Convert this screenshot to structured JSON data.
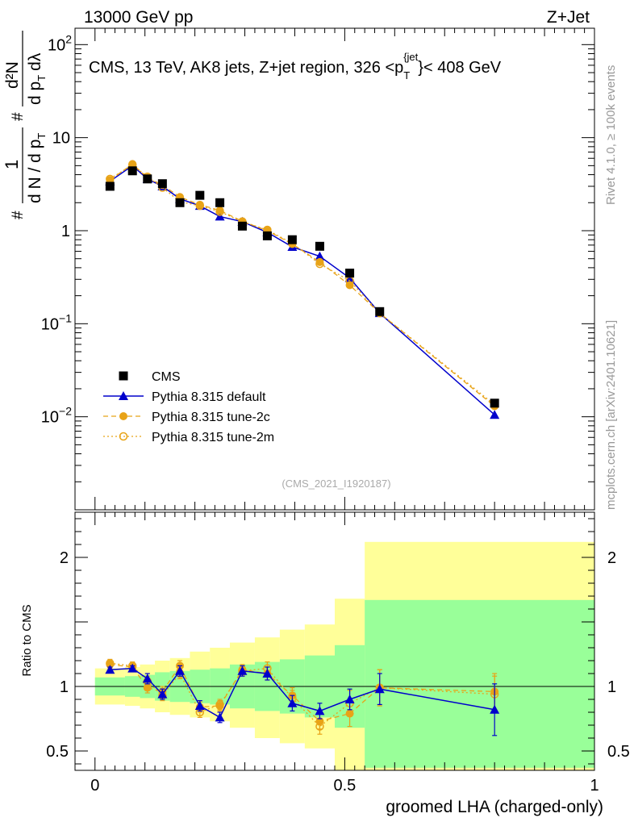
{
  "header": {
    "left": "13000 GeV pp",
    "right": "Z+Jet"
  },
  "side_labels": {
    "rivet": "Rivet 4.1.0, ≥ 100k events",
    "mcplots": "mcplots.cern.ch [arXiv:2401.10621]"
  },
  "colors": {
    "cms": "#000000",
    "default": "#0000cc",
    "tune2c": "#e8a317",
    "tune2m": "#e8a317",
    "band_inner": "#99ff99",
    "band_outer": "#ffff99"
  },
  "chart_data": [
    {
      "type": "line",
      "panel": "distribution",
      "title": "CMS, 13 TeV, AK8 jets, Z+jet region, 326 <p_T^{jet}< 408 GeV",
      "title_parts": {
        "main": "CMS, 13 TeV, AK8 jets, Z+jet region, 326 <p",
        "sub": "T",
        "sup": "{jet",
        "tail": "}< 408 GeV"
      },
      "watermark": "(CMS_2021_I1920187)",
      "ylabel_parts": {
        "hash1": "#",
        "hash2": "#",
        "one": "1",
        "dN": "d N / d p",
        "dN_sub": "T",
        "d2N": "d²N",
        "dpTdl": "d p",
        "dpTdl_sub": "T",
        "dl": "dλ"
      },
      "yscale": "log",
      "ylim": [
        0.001,
        150
      ],
      "xlim": [
        -0.04,
        1.0
      ],
      "yticks": [
        {
          "value": 0.01,
          "label": "10",
          "exp": "−2"
        },
        {
          "value": 0.1,
          "label": "10",
          "exp": "−1"
        },
        {
          "value": 1,
          "label": "1",
          "exp": ""
        },
        {
          "value": 10,
          "label": "10",
          "exp": ""
        },
        {
          "value": 100,
          "label": "10",
          "exp": "2"
        }
      ],
      "x": [
        0.03,
        0.075,
        0.105,
        0.135,
        0.17,
        0.21,
        0.25,
        0.295,
        0.345,
        0.395,
        0.45,
        0.51,
        0.57,
        0.8
      ],
      "series": [
        {
          "name": "CMS",
          "style": "square",
          "values": [
            3.0,
            4.4,
            3.6,
            3.2,
            2.0,
            2.4,
            2.0,
            1.12,
            0.88,
            0.8,
            0.68,
            0.35,
            0.135,
            0.014
          ]
        },
        {
          "name": "Pythia 8.315 default",
          "style": "triangle-line",
          "values": [
            3.4,
            5.0,
            3.6,
            3.0,
            2.2,
            1.85,
            1.42,
            1.25,
            0.96,
            0.67,
            0.53,
            0.31,
            0.13,
            0.0105
          ]
        },
        {
          "name": "Pythia 8.315 tune-2c",
          "style": "dot-dashed",
          "values": [
            3.5,
            5.2,
            3.7,
            3.1,
            2.3,
            1.9,
            1.65,
            1.26,
            1.0,
            0.72,
            0.46,
            0.26,
            0.13,
            0.013
          ]
        },
        {
          "name": "Pythia 8.315 tune-2m",
          "style": "circle-dotted",
          "values": [
            3.6,
            5.1,
            3.8,
            2.9,
            2.05,
            1.85,
            1.6,
            1.25,
            1.02,
            0.73,
            0.44,
            0.29,
            0.13,
            0.0135
          ]
        }
      ],
      "legend": [
        "CMS",
        "Pythia 8.315 default",
        "Pythia 8.315 tune-2c",
        "Pythia 8.315 tune-2m"
      ],
      "legend_position": "middle-left"
    },
    {
      "type": "line",
      "panel": "ratio",
      "ylabel": "Ratio to CMS",
      "xlabel": "groomed LHA (charged-only)",
      "ylim": [
        0.35,
        2.35
      ],
      "xlim": [
        -0.04,
        1.0
      ],
      "xticks": [
        {
          "value": 0,
          "label": "0"
        },
        {
          "value": 0.5,
          "label": "0.5"
        },
        {
          "value": 1,
          "label": "1"
        }
      ],
      "yticks": [
        {
          "value": 0.5,
          "label": "0.5"
        },
        {
          "value": 1,
          "label": "1"
        },
        {
          "value": 2,
          "label": "2"
        }
      ],
      "bins": [
        {
          "x0": 0.0,
          "x1": 0.06,
          "inner": [
            0.93,
            1.07
          ],
          "outer": [
            0.86,
            1.14
          ]
        },
        {
          "x0": 0.06,
          "x1": 0.09,
          "inner": [
            0.92,
            1.08
          ],
          "outer": [
            0.85,
            1.15
          ]
        },
        {
          "x0": 0.09,
          "x1": 0.12,
          "inner": [
            0.91,
            1.09
          ],
          "outer": [
            0.83,
            1.17
          ]
        },
        {
          "x0": 0.12,
          "x1": 0.15,
          "inner": [
            0.89,
            1.11
          ],
          "outer": [
            0.8,
            1.2
          ]
        },
        {
          "x0": 0.15,
          "x1": 0.19,
          "inner": [
            0.88,
            1.12
          ],
          "outer": [
            0.78,
            1.22
          ]
        },
        {
          "x0": 0.19,
          "x1": 0.23,
          "inner": [
            0.87,
            1.13
          ],
          "outer": [
            0.76,
            1.27
          ]
        },
        {
          "x0": 0.23,
          "x1": 0.27,
          "inner": [
            0.86,
            1.14
          ],
          "outer": [
            0.73,
            1.3
          ]
        },
        {
          "x0": 0.27,
          "x1": 0.32,
          "inner": [
            0.83,
            1.17
          ],
          "outer": [
            0.68,
            1.34
          ]
        },
        {
          "x0": 0.32,
          "x1": 0.37,
          "inner": [
            0.81,
            1.19
          ],
          "outer": [
            0.6,
            1.38
          ]
        },
        {
          "x0": 0.37,
          "x1": 0.42,
          "inner": [
            0.79,
            1.21
          ],
          "outer": [
            0.56,
            1.44
          ]
        },
        {
          "x0": 0.42,
          "x1": 0.48,
          "inner": [
            0.76,
            1.24
          ],
          "outer": [
            0.52,
            1.48
          ]
        },
        {
          "x0": 0.48,
          "x1": 0.54,
          "inner": [
            0.68,
            1.32
          ],
          "outer": [
            0.35,
            1.68
          ]
        },
        {
          "x0": 0.54,
          "x1": 1.0,
          "inner": [
            0.37,
            1.67
          ],
          "outer": [
            0.35,
            2.12
          ]
        }
      ],
      "x": [
        0.03,
        0.075,
        0.105,
        0.135,
        0.17,
        0.21,
        0.25,
        0.295,
        0.345,
        0.395,
        0.45,
        0.51,
        0.57,
        0.8
      ],
      "series": [
        {
          "name": "Pythia 8.315 default",
          "style": "triangle-line",
          "values": [
            1.13,
            1.14,
            1.06,
            0.94,
            1.12,
            0.85,
            0.76,
            1.12,
            1.1,
            0.87,
            0.81,
            0.9,
            0.98,
            0.82
          ],
          "errors": [
            0.02,
            0.02,
            0.04,
            0.04,
            0.04,
            0.04,
            0.04,
            0.04,
            0.05,
            0.06,
            0.06,
            0.08,
            0.12,
            0.2
          ]
        },
        {
          "name": "Pythia 8.315 tune-2c",
          "style": "dot-dashed",
          "values": [
            1.17,
            1.15,
            0.99,
            0.96,
            1.16,
            0.84,
            0.85,
            1.13,
            1.1,
            0.93,
            0.73,
            0.79,
            0.99,
            0.96
          ],
          "errors": [
            0.03,
            0.03,
            0.04,
            0.04,
            0.04,
            0.04,
            0.04,
            0.04,
            0.05,
            0.06,
            0.06,
            0.1,
            0.14,
            0.14
          ]
        },
        {
          "name": "Pythia 8.315 tune-2m",
          "style": "circle-dotted",
          "values": [
            1.18,
            1.16,
            1.04,
            0.93,
            1.1,
            0.8,
            0.86,
            1.12,
            1.14,
            0.91,
            0.69,
            0.87,
            0.99,
            0.94
          ],
          "errors": [
            0.03,
            0.03,
            0.04,
            0.04,
            0.04,
            0.04,
            0.04,
            0.04,
            0.05,
            0.06,
            0.06,
            0.1,
            0.14,
            0.14
          ]
        }
      ]
    }
  ]
}
